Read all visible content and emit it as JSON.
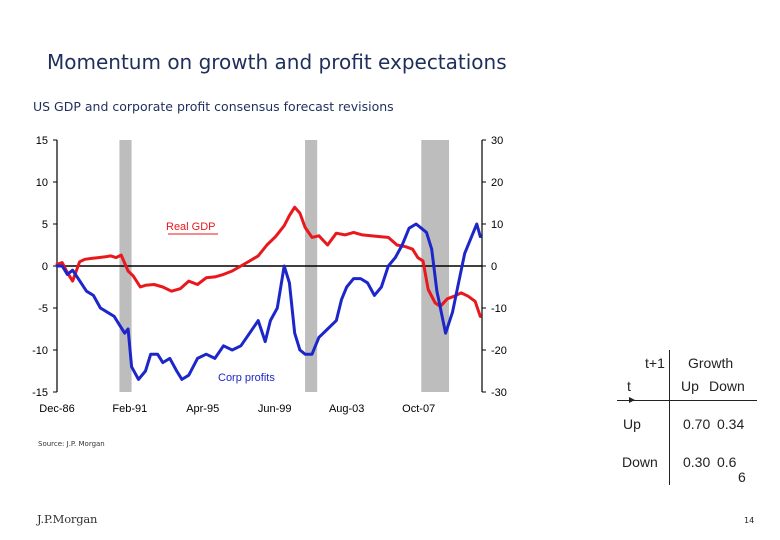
{
  "slide": {
    "title": "Momentum on growth and profit expectations",
    "subtitle": "US GDP and corporate profit consensus forecast revisions",
    "source": "Source:  J.P. Morgan",
    "logo": "J.P.Morgan",
    "page_number": "14"
  },
  "matrix": {
    "col_header_top": "t+1",
    "row_header": "t",
    "group_label": "Growth",
    "col_up": "Up",
    "col_down": "Down",
    "row_up": "Up",
    "row_down": "Down",
    "up_up": "0.70",
    "up_down": "0.34",
    "down_up": "0.30",
    "down_down_a": "0.6",
    "down_down_b": "6"
  },
  "colors": {
    "gdp": "#e8181d",
    "profits": "#1d27c9",
    "recession": "#bdbdbd",
    "title": "#1f2f5c"
  },
  "chart_data": {
    "type": "line",
    "x_ticks": [
      "Dec-86",
      "Feb-91",
      "Apr-95",
      "Jun-99",
      "Aug-03",
      "Oct-07"
    ],
    "xlim": [
      1986.9,
      2011.4
    ],
    "series": [
      {
        "name": "Real GDP",
        "axis": "left",
        "color": "#e8181d",
        "x": [
          1986.9,
          1987.2,
          1987.5,
          1987.8,
          1988.2,
          1988.5,
          1988.9,
          1989.3,
          1989.7,
          1990.0,
          1990.3,
          1990.6,
          1991.0,
          1991.3,
          1991.7,
          1992.0,
          1992.5,
          1993.0,
          1993.5,
          1994.0,
          1994.5,
          1995.0,
          1995.5,
          1996.0,
          1996.5,
          1997.0,
          1997.5,
          1998.0,
          1998.5,
          1999.0,
          1999.5,
          2000.0,
          2000.3,
          2000.6,
          2000.9,
          2001.2,
          2001.6,
          2002.0,
          2002.5,
          2003.0,
          2003.5,
          2004.0,
          2004.5,
          2005.0,
          2005.5,
          2006.0,
          2006.5,
          2007.0,
          2007.4,
          2007.7,
          2008.0,
          2008.3,
          2008.7,
          2009.0,
          2009.4,
          2009.8,
          2010.2,
          2010.6,
          2011.0,
          2011.3
        ],
        "values": [
          0.2,
          0.4,
          -0.8,
          -1.8,
          0.5,
          0.8,
          0.9,
          1.0,
          1.1,
          1.2,
          1.0,
          1.3,
          -0.6,
          -1.2,
          -2.5,
          -2.3,
          -2.2,
          -2.5,
          -3.0,
          -2.7,
          -1.8,
          -2.2,
          -1.4,
          -1.3,
          -1.0,
          -0.6,
          0.0,
          0.6,
          1.2,
          2.5,
          3.5,
          4.8,
          6.0,
          7.0,
          6.3,
          4.6,
          3.4,
          3.6,
          2.5,
          3.9,
          3.7,
          4.0,
          3.7,
          3.6,
          3.5,
          3.4,
          2.5,
          2.3,
          2.0,
          1.0,
          0.6,
          -2.8,
          -4.4,
          -4.8,
          -3.9,
          -3.6,
          -3.2,
          -3.6,
          -4.2,
          -6.0
        ]
      },
      {
        "name": "Corp profits",
        "axis": "right",
        "color": "#1d27c9",
        "x": [
          1986.9,
          1987.2,
          1987.5,
          1987.8,
          1988.2,
          1988.6,
          1989.0,
          1989.4,
          1989.8,
          1990.2,
          1990.5,
          1990.8,
          1991.0,
          1991.2,
          1991.6,
          1992.0,
          1992.3,
          1992.7,
          1993.0,
          1993.4,
          1993.8,
          1994.1,
          1994.5,
          1995.0,
          1995.5,
          1996.0,
          1996.5,
          1997.0,
          1997.5,
          1998.0,
          1998.5,
          1998.9,
          1999.2,
          1999.6,
          2000.0,
          2000.3,
          2000.6,
          2000.9,
          2001.2,
          2001.6,
          2002.0,
          2002.5,
          2003.0,
          2003.3,
          2003.6,
          2004.0,
          2004.4,
          2004.8,
          2005.2,
          2005.6,
          2006.0,
          2006.4,
          2006.8,
          2007.2,
          2007.6,
          2007.9,
          2008.2,
          2008.5,
          2008.8,
          2009.0,
          2009.3,
          2009.7,
          2010.0,
          2010.4,
          2010.8,
          2011.1,
          2011.3
        ],
        "values": [
          0,
          0,
          -2,
          -1,
          -3.5,
          -6,
          -7,
          -10,
          -11,
          -12,
          -14,
          -16,
          -15,
          -24,
          -27,
          -25,
          -21,
          -21,
          -23,
          -22,
          -25,
          -27,
          -26,
          -22,
          -21,
          -22,
          -19,
          -20,
          -19,
          -16,
          -13,
          -18,
          -13,
          -10,
          0,
          -4,
          -16,
          -20,
          -21,
          -21,
          -17,
          -15,
          -13,
          -8,
          -5,
          -3,
          -3,
          -4,
          -7,
          -5,
          0,
          2,
          5,
          9,
          10,
          9,
          8,
          4,
          -6,
          -10,
          -16,
          -11,
          -5,
          3,
          7,
          10,
          7
        ]
      }
    ],
    "recessions": [
      [
        1990.5,
        1991.2
      ],
      [
        2001.2,
        2001.9
      ],
      [
        2007.9,
        2009.5
      ]
    ],
    "left_axis": {
      "ylim": [
        -15,
        15
      ],
      "ticks": [
        15,
        10,
        5,
        0,
        -5,
        -10,
        -15
      ],
      "tick_labels": [
        "15",
        "10",
        "5",
        "0",
        "-5",
        "-10",
        "-15"
      ]
    },
    "right_axis": {
      "ylim": [
        -30,
        30
      ],
      "ticks": [
        30,
        20,
        10,
        0,
        -10,
        -20,
        -30
      ],
      "tick_labels": [
        "30",
        "20",
        "10",
        "0",
        "-10",
        "-20",
        "-30"
      ]
    },
    "annotations": [
      "Real GDP",
      "Corp profits"
    ]
  }
}
